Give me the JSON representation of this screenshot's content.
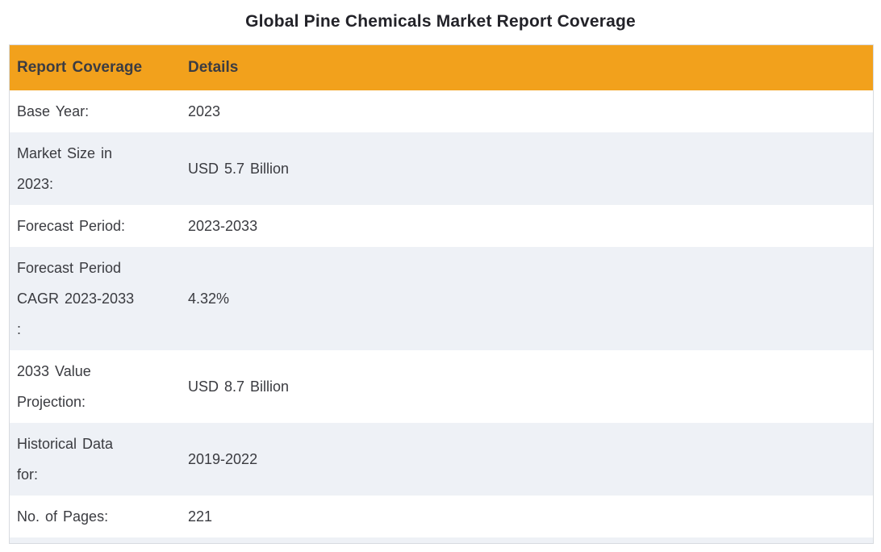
{
  "page": {
    "title": "Global Pine Chemicals Market Report Coverage"
  },
  "table": {
    "columns": [
      {
        "label": "Report Coverage"
      },
      {
        "label": "Details"
      }
    ],
    "rows": [
      {
        "label": "Base Year:",
        "value": "2023"
      },
      {
        "label": "Market Size in\n2023:",
        "value": "USD 5.7 Billion"
      },
      {
        "label": "Forecast Period:",
        "value": "2023-2033"
      },
      {
        "label": "Forecast Period\nCAGR 2023-2033\n:",
        "value": "4.32%"
      },
      {
        "label": "2033 Value\nProjection:",
        "value": "USD 8.7 Billion"
      },
      {
        "label": "Historical Data\nfor:",
        "value": "2019-2022"
      },
      {
        "label": "No. of Pages:",
        "value": "221"
      }
    ]
  },
  "colors": {
    "header_bg": "#F2A11C",
    "row_bg": "#FFFFFF",
    "row_alt_bg": "#EEF1F6",
    "border": "#D8DBE0",
    "text": "#3A3B40",
    "header_text": "#3B3C42",
    "title_text": "#232329"
  }
}
